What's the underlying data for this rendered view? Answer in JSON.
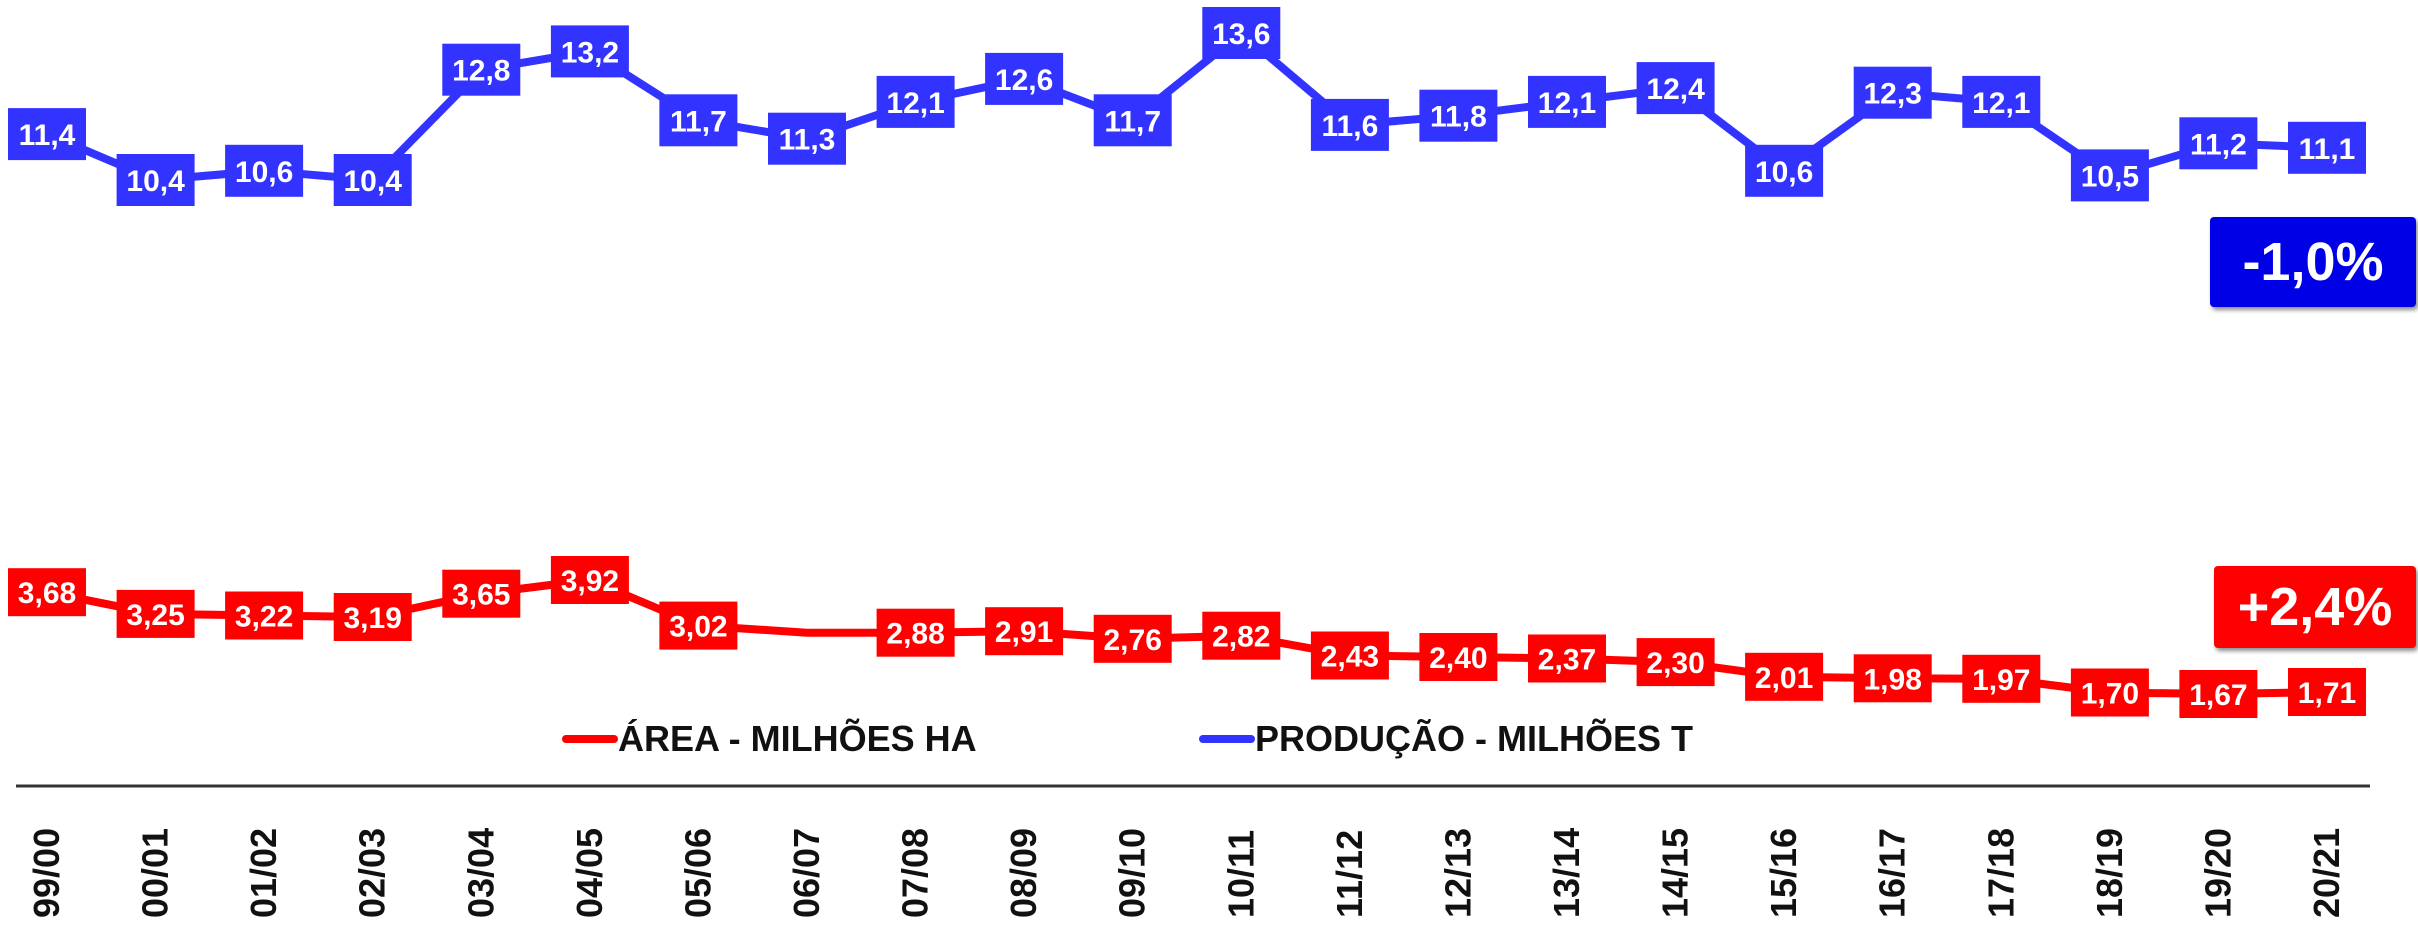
{
  "chart_data": {
    "type": "line",
    "categories": [
      "99/00",
      "00/01",
      "01/02",
      "02/03",
      "03/04",
      "04/05",
      "05/06",
      "06/07",
      "07/08",
      "08/09",
      "09/10",
      "10/11",
      "11/12",
      "12/13",
      "13/14",
      "14/15",
      "15/16",
      "16/17",
      "17/18",
      "18/19",
      "19/20",
      "20/21"
    ],
    "series": [
      {
        "name": "PRODUÇÃO - MILHÕES T",
        "color": "#3333ff",
        "values": [
          11.4,
          10.4,
          10.6,
          10.4,
          12.8,
          13.2,
          11.7,
          11.3,
          12.1,
          12.6,
          11.7,
          13.6,
          11.6,
          11.8,
          12.1,
          12.4,
          10.6,
          12.3,
          12.1,
          10.5,
          11.2,
          11.1
        ],
        "labels": [
          "11,4",
          "10,4",
          "10,6",
          "10,4",
          "12,8",
          "13,2",
          "11,7",
          "11,3",
          "12,1",
          "12,6",
          "11,7",
          "13,6",
          "11,6",
          "11,8",
          "12,1",
          "12,4",
          "10,6",
          "12,3",
          "12,1",
          "10,5",
          "11,2",
          "11,1"
        ],
        "change": "-1,0%",
        "change_color": "#0000e6"
      },
      {
        "name": "ÁREA - MILHÕES HA",
        "color": "#ff0000",
        "values": [
          3.68,
          3.25,
          3.22,
          3.19,
          3.65,
          3.92,
          3.02,
          2.88,
          2.88,
          2.91,
          2.76,
          2.82,
          2.43,
          2.4,
          2.37,
          2.3,
          2.01,
          1.98,
          1.97,
          1.7,
          1.67,
          1.71
        ],
        "labels": [
          "3,68",
          "3,25",
          "3,22",
          "3,19",
          "3,65",
          "3,92",
          "3,02",
          "",
          "2,88",
          "2,91",
          "2,76",
          "2,82",
          "2,43",
          "2,40",
          "2,37",
          "2,30",
          "2,01",
          "1,98",
          "1,97",
          "1,70",
          "1,67",
          "1,71"
        ],
        "change": "+2,4%",
        "change_color": "#ff0000"
      }
    ],
    "legend": {
      "position": "bottom-center",
      "items": [
        "ÁREA - MILHÕES HA",
        "PRODUÇÃO - MILHÕES T"
      ]
    },
    "grid": false
  }
}
